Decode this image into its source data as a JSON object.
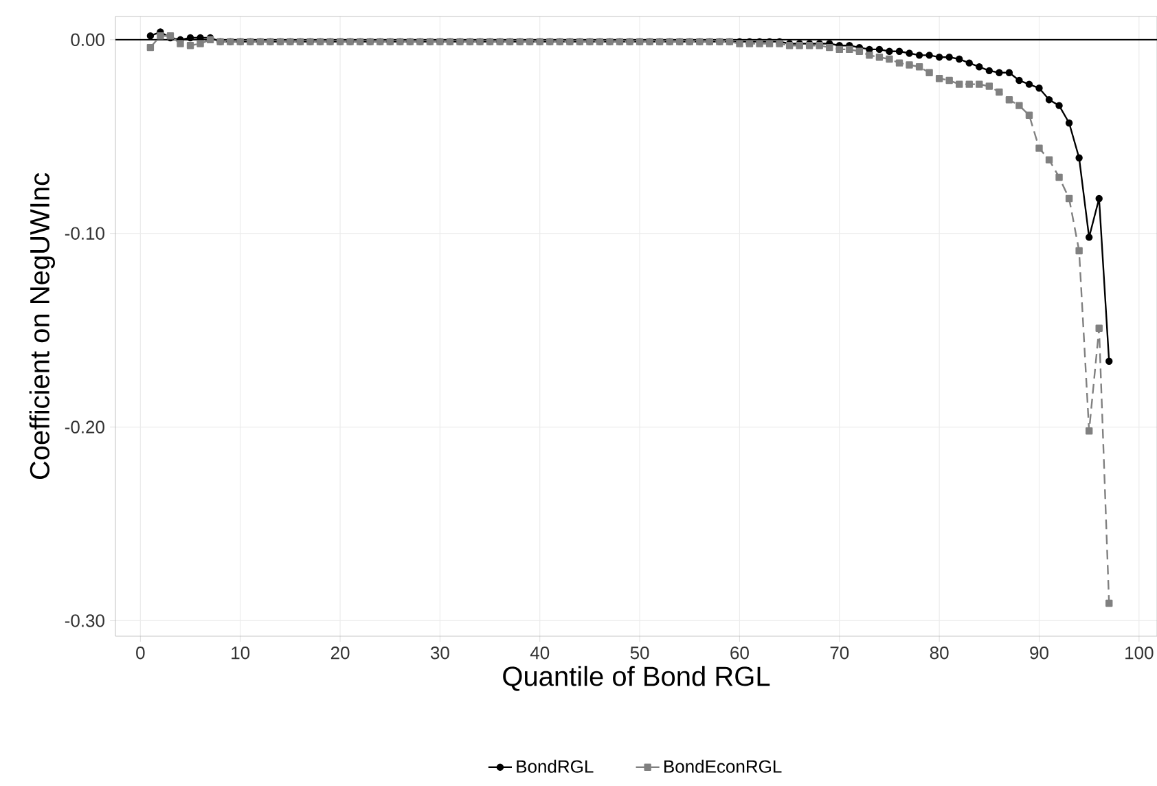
{
  "chart_data": {
    "type": "line",
    "xlabel": "Quantile of Bond RGL",
    "ylabel": "Coefficient on NegUWInc",
    "x": [
      1,
      2,
      3,
      4,
      5,
      6,
      7,
      8,
      9,
      10,
      11,
      12,
      13,
      14,
      15,
      16,
      17,
      18,
      19,
      20,
      21,
      22,
      23,
      24,
      25,
      26,
      27,
      28,
      29,
      30,
      31,
      32,
      33,
      34,
      35,
      36,
      37,
      38,
      39,
      40,
      41,
      42,
      43,
      44,
      45,
      46,
      47,
      48,
      49,
      50,
      51,
      52,
      53,
      54,
      55,
      56,
      57,
      58,
      59,
      60,
      61,
      62,
      63,
      64,
      65,
      66,
      67,
      68,
      69,
      70,
      71,
      72,
      73,
      74,
      75,
      76,
      77,
      78,
      79,
      80,
      81,
      82,
      83,
      84,
      85,
      86,
      87,
      88,
      89,
      90,
      91,
      92,
      93,
      94,
      95,
      96,
      97
    ],
    "series": [
      {
        "name": "BondRGL",
        "color": "#000000",
        "marker": "circle",
        "line_style": "solid",
        "values": [
          0.002,
          0.004,
          0.001,
          0.0,
          0.001,
          0.001,
          0.001,
          -0.001,
          -0.001,
          -0.001,
          -0.001,
          -0.001,
          -0.001,
          -0.001,
          -0.001,
          -0.001,
          -0.001,
          -0.001,
          -0.001,
          -0.001,
          -0.001,
          -0.001,
          -0.001,
          -0.001,
          -0.001,
          -0.001,
          -0.001,
          -0.001,
          -0.001,
          -0.001,
          -0.001,
          -0.001,
          -0.001,
          -0.001,
          -0.001,
          -0.001,
          -0.001,
          -0.001,
          -0.001,
          -0.001,
          -0.001,
          -0.001,
          -0.001,
          -0.001,
          -0.001,
          -0.001,
          -0.001,
          -0.001,
          -0.001,
          -0.001,
          -0.001,
          -0.001,
          -0.001,
          -0.001,
          -0.001,
          -0.001,
          -0.001,
          -0.001,
          -0.001,
          -0.001,
          -0.001,
          -0.001,
          -0.001,
          -0.001,
          -0.002,
          -0.002,
          -0.002,
          -0.002,
          -0.002,
          -0.003,
          -0.003,
          -0.004,
          -0.005,
          -0.005,
          -0.006,
          -0.006,
          -0.007,
          -0.008,
          -0.008,
          -0.009,
          -0.009,
          -0.01,
          -0.012,
          -0.014,
          -0.016,
          -0.017,
          -0.017,
          -0.021,
          -0.023,
          -0.025,
          -0.031,
          -0.034,
          -0.043,
          -0.061,
          -0.102,
          -0.082,
          -0.166
        ]
      },
      {
        "name": "BondEconRGL",
        "color": "#808080",
        "marker": "square",
        "line_style": "dashed",
        "values": [
          -0.004,
          0.002,
          0.002,
          -0.002,
          -0.003,
          -0.002,
          0.0,
          -0.001,
          -0.001,
          -0.001,
          -0.001,
          -0.001,
          -0.001,
          -0.001,
          -0.001,
          -0.001,
          -0.001,
          -0.001,
          -0.001,
          -0.001,
          -0.001,
          -0.001,
          -0.001,
          -0.001,
          -0.001,
          -0.001,
          -0.001,
          -0.001,
          -0.001,
          -0.001,
          -0.001,
          -0.001,
          -0.001,
          -0.001,
          -0.001,
          -0.001,
          -0.001,
          -0.001,
          -0.001,
          -0.001,
          -0.001,
          -0.001,
          -0.001,
          -0.001,
          -0.001,
          -0.001,
          -0.001,
          -0.001,
          -0.001,
          -0.001,
          -0.001,
          -0.001,
          -0.001,
          -0.001,
          -0.001,
          -0.001,
          -0.001,
          -0.001,
          -0.001,
          -0.002,
          -0.002,
          -0.002,
          -0.002,
          -0.002,
          -0.003,
          -0.003,
          -0.003,
          -0.003,
          -0.004,
          -0.005,
          -0.005,
          -0.006,
          -0.008,
          -0.009,
          -0.01,
          -0.012,
          -0.013,
          -0.014,
          -0.017,
          -0.02,
          -0.021,
          -0.023,
          -0.023,
          -0.023,
          -0.024,
          -0.027,
          -0.031,
          -0.034,
          -0.039,
          -0.056,
          -0.062,
          -0.071,
          -0.082,
          -0.109,
          -0.202,
          -0.149,
          -0.291
        ]
      }
    ],
    "xlim": [
      -2.5,
      101.8
    ],
    "ylim": [
      -0.308,
      0.012
    ],
    "xticks": [
      0,
      10,
      20,
      30,
      40,
      50,
      60,
      70,
      80,
      90,
      100
    ],
    "yticks": [
      {
        "value": 0.0,
        "label": "0.00"
      },
      {
        "value": -0.1,
        "label": "-0.10"
      },
      {
        "value": -0.2,
        "label": "-0.20"
      },
      {
        "value": -0.3,
        "label": "-0.30"
      }
    ],
    "ref_lines": [
      {
        "axis": "y",
        "value": 0.0,
        "color": "#000000",
        "line_style": "solid"
      }
    ],
    "grid": true,
    "legend": "bottom"
  }
}
